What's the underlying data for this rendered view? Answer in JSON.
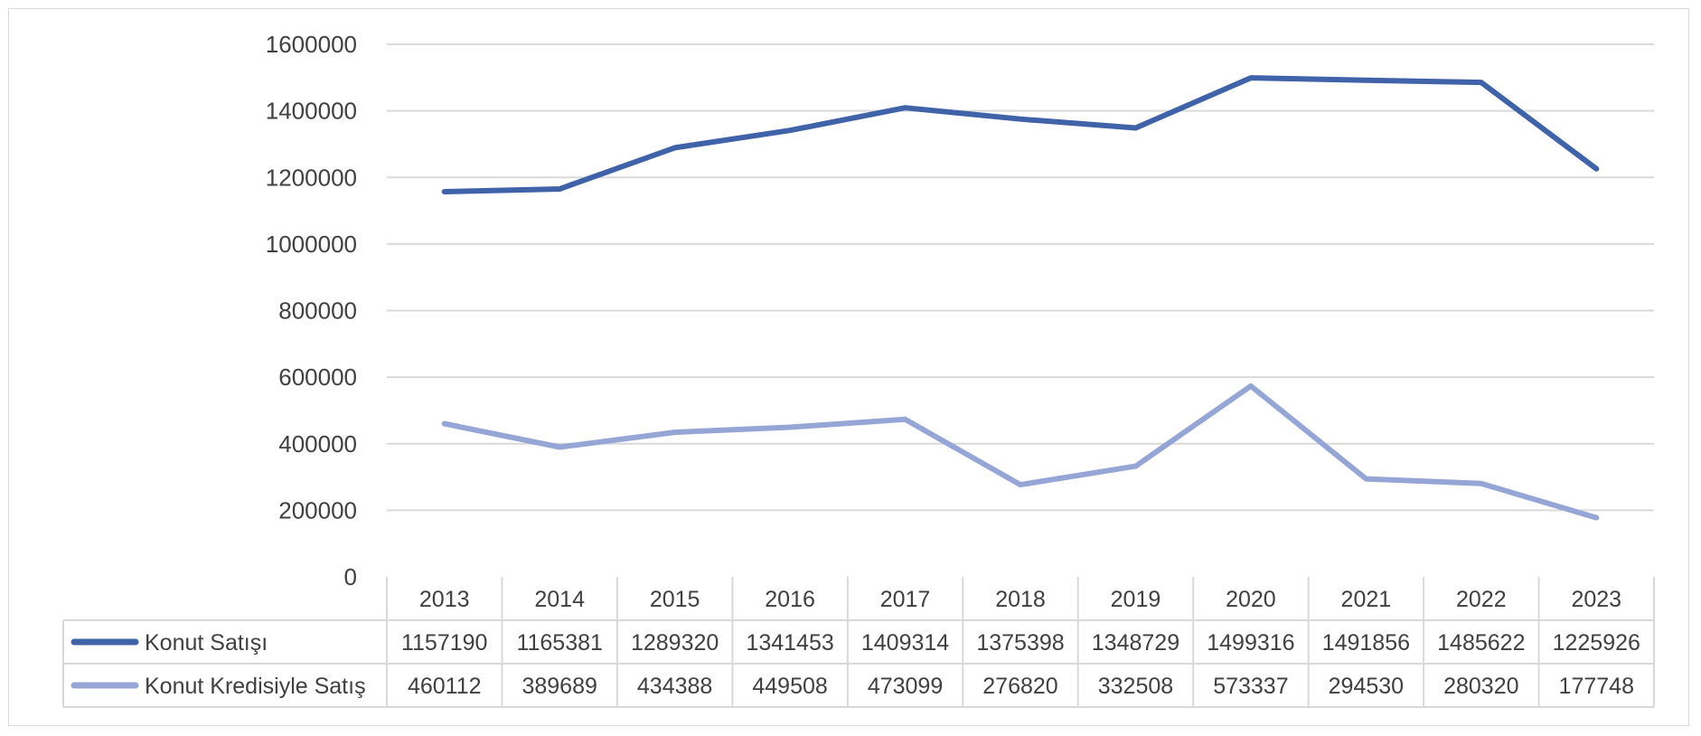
{
  "chart_data": {
    "type": "line",
    "categories": [
      "2013",
      "2014",
      "2015",
      "2016",
      "2017",
      "2018",
      "2019",
      "2020",
      "2021",
      "2022",
      "2023"
    ],
    "series": [
      {
        "name": "Konut Satışı",
        "color": "#4062a9",
        "values": [
          1157190,
          1165381,
          1289320,
          1341453,
          1409314,
          1375398,
          1348729,
          1499316,
          1491856,
          1485622,
          1225926
        ],
        "labels": [
          "1157190",
          "1165381",
          "1289320",
          "1341453",
          "1409314",
          "1375398",
          "1348729",
          "1499316",
          "1491856",
          "1485622",
          "1225926"
        ]
      },
      {
        "name": "Konut Kredisiyle Satış",
        "color": "#94a5d6",
        "values": [
          460112,
          389689,
          434388,
          449508,
          473099,
          276820,
          332508,
          573337,
          294530,
          280320,
          177748
        ],
        "labels": [
          "460112",
          "389689",
          "434388",
          "449508",
          "473099",
          "276820",
          "332508",
          "573337",
          "294530",
          "280320",
          "177748"
        ]
      }
    ],
    "ylim": [
      0,
      1600000
    ],
    "yticks": [
      "0",
      "200000",
      "400000",
      "600000",
      "800000",
      "1000000",
      "1200000",
      "1400000",
      "1600000"
    ],
    "grid": true,
    "legend": "data-table",
    "title": "",
    "xlabel": "",
    "ylabel": ""
  }
}
